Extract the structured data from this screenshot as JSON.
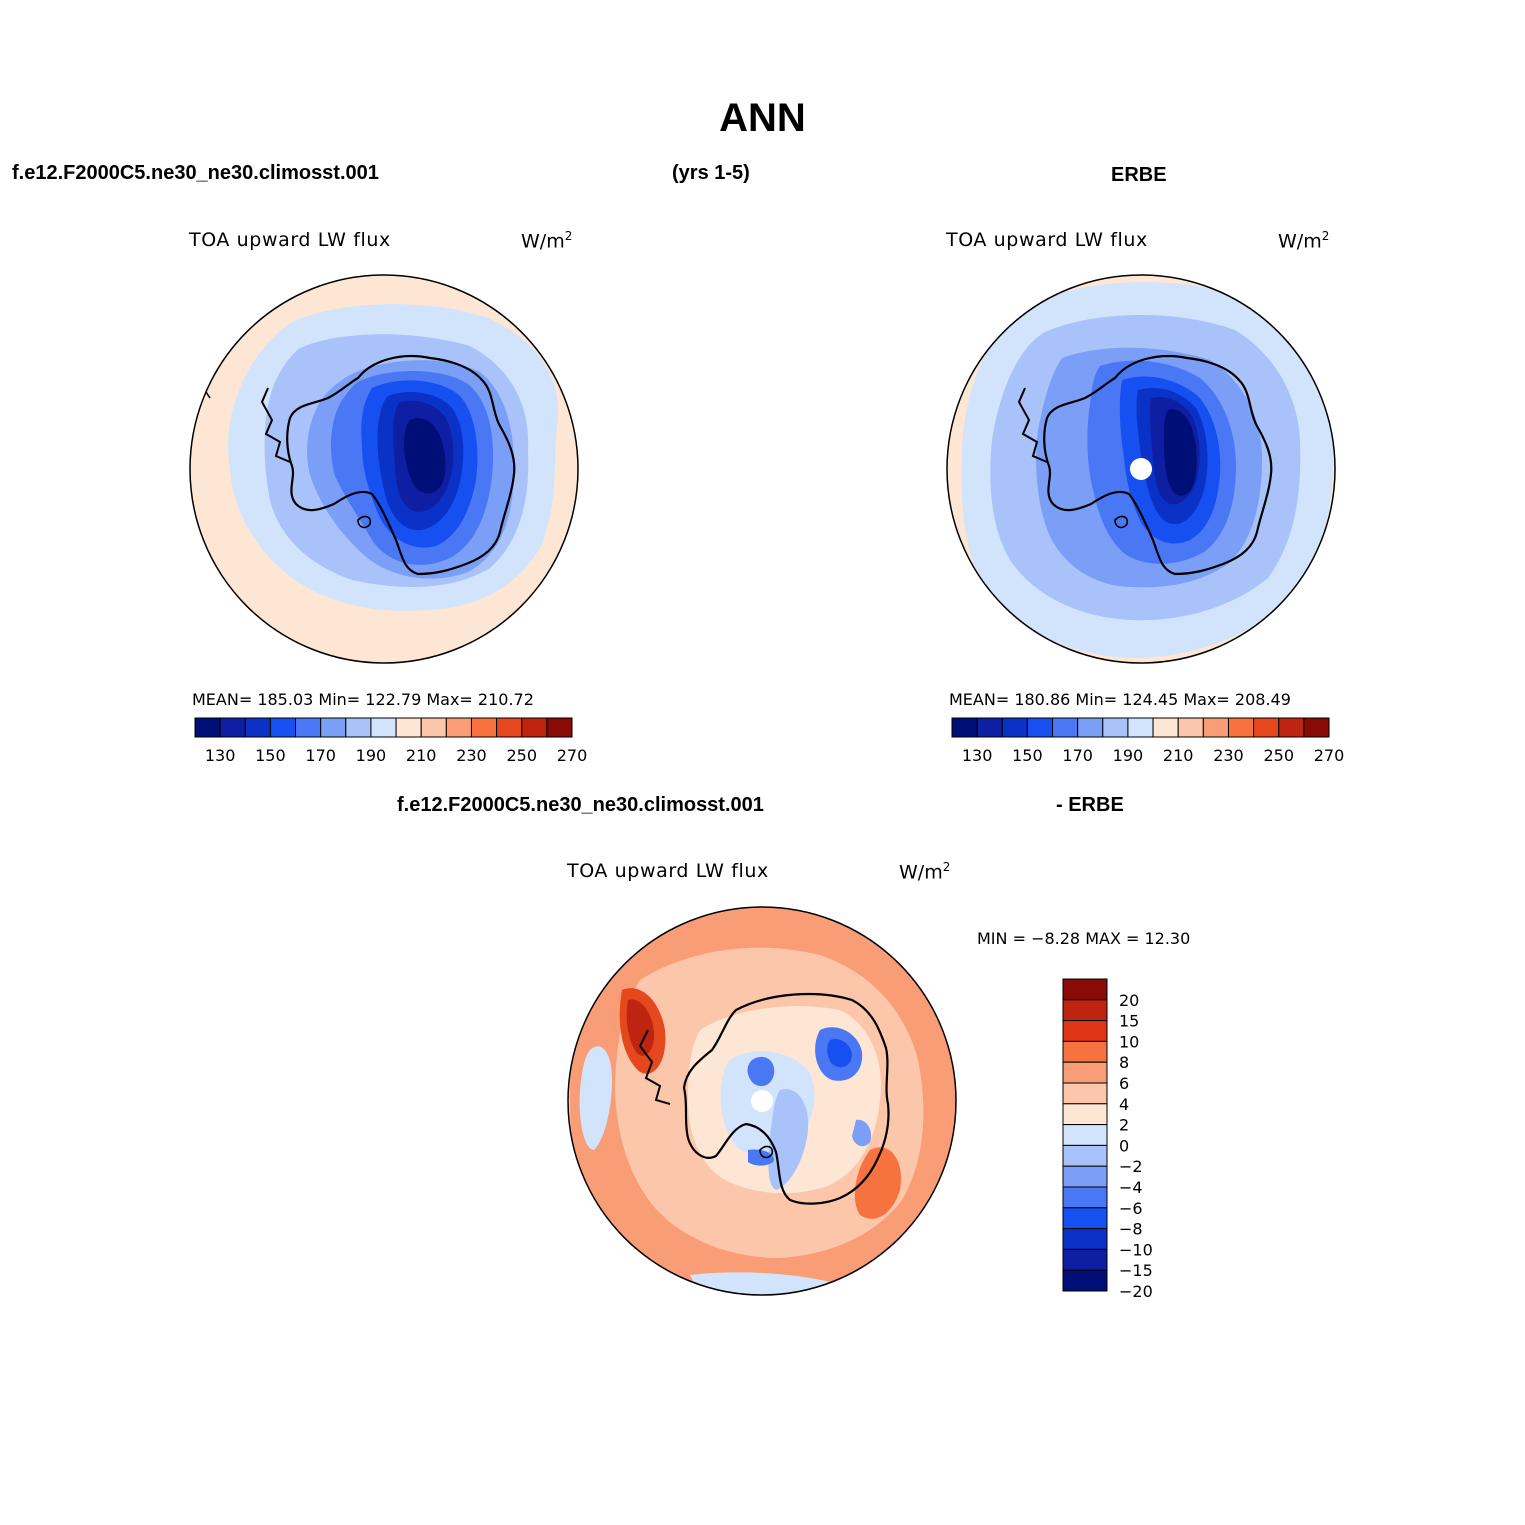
{
  "title": "ANN",
  "case_name": "f.e12.F2000C5.ne30_ne30.climosst.001",
  "years": "(yrs 1-5)",
  "obs_name": "ERBE",
  "diff_case_name": "f.e12.F2000C5.ne30_ne30.climosst.001",
  "diff_obs_name": "- ERBE",
  "panels": {
    "model": {
      "title": "TOA upward LW flux",
      "units": "W/m",
      "units_sup": "2",
      "stats": "MEAN= 185.03   Min= 122.79   Max= 210.72"
    },
    "obs": {
      "title": "TOA upward LW flux",
      "units": "W/m",
      "units_sup": "2",
      "stats": "MEAN= 180.86   Min= 124.45   Max= 208.49"
    },
    "diff": {
      "title": "TOA upward LW flux",
      "units": "W/m",
      "units_sup": "2",
      "stats": "MIN =   −8.28  MAX =   12.30"
    }
  },
  "chart_data": [
    {
      "type": "heatmap",
      "projection": "south polar stereographic",
      "field": "TOA upward LW flux",
      "units": "W/m2",
      "mean": 185.03,
      "min": 122.79,
      "max": 210.72,
      "colorbar": {
        "levels": [
          130,
          140,
          150,
          160,
          170,
          180,
          190,
          200,
          210,
          220,
          230,
          240,
          250,
          260,
          270
        ],
        "tick_labels": [
          "130",
          "150",
          "170",
          "190",
          "210",
          "230",
          "250",
          "270"
        ],
        "colors": [
          "#000e78",
          "#0f1fa4",
          "#0a32c6",
          "#1750f0",
          "#4a78f5",
          "#7b9ef6",
          "#a9c2f9",
          "#d2e4fc",
          "#fde6d4",
          "#fcc6aa",
          "#f99d77",
          "#f6733f",
          "#e5481d",
          "#bf2410",
          "#880c05"
        ]
      }
    },
    {
      "type": "heatmap",
      "projection": "south polar stereographic",
      "field": "TOA upward LW flux",
      "units": "W/m2",
      "mean": 180.86,
      "min": 124.45,
      "max": 208.49,
      "colorbar": {
        "levels": [
          130,
          140,
          150,
          160,
          170,
          180,
          190,
          200,
          210,
          220,
          230,
          240,
          250,
          260,
          270
        ],
        "tick_labels": [
          "130",
          "150",
          "170",
          "190",
          "210",
          "230",
          "250",
          "270"
        ],
        "colors": [
          "#000e78",
          "#0f1fa4",
          "#0a32c6",
          "#1750f0",
          "#4a78f5",
          "#7b9ef6",
          "#a9c2f9",
          "#d2e4fc",
          "#fde6d4",
          "#fcc6aa",
          "#f99d77",
          "#f6733f",
          "#e5481d",
          "#bf2410",
          "#880c05"
        ]
      }
    },
    {
      "type": "heatmap",
      "projection": "south polar stereographic",
      "field": "TOA upward LW flux",
      "units": "W/m2",
      "min": -8.28,
      "max": 12.3,
      "colorbar": {
        "levels": [
          20,
          15,
          10,
          8,
          6,
          4,
          2,
          0,
          -2,
          -4,
          -6,
          -8,
          -10,
          -15,
          -20
        ],
        "tick_labels": [
          "20",
          "15",
          "10",
          "8",
          "6",
          "4",
          "2",
          "0",
          "−2",
          "−4",
          "−6",
          "−8",
          "−10",
          "−15",
          "−20"
        ],
        "colors": [
          "#880c05",
          "#bf2410",
          "#e03516",
          "#f6733f",
          "#f99d77",
          "#fcc6aa",
          "#fde6d4",
          "#d2e4fc",
          "#a9c2f9",
          "#7b9ef6",
          "#4a78f5",
          "#1750f0",
          "#0a32c6",
          "#0f1fa4",
          "#000e78"
        ]
      }
    }
  ]
}
